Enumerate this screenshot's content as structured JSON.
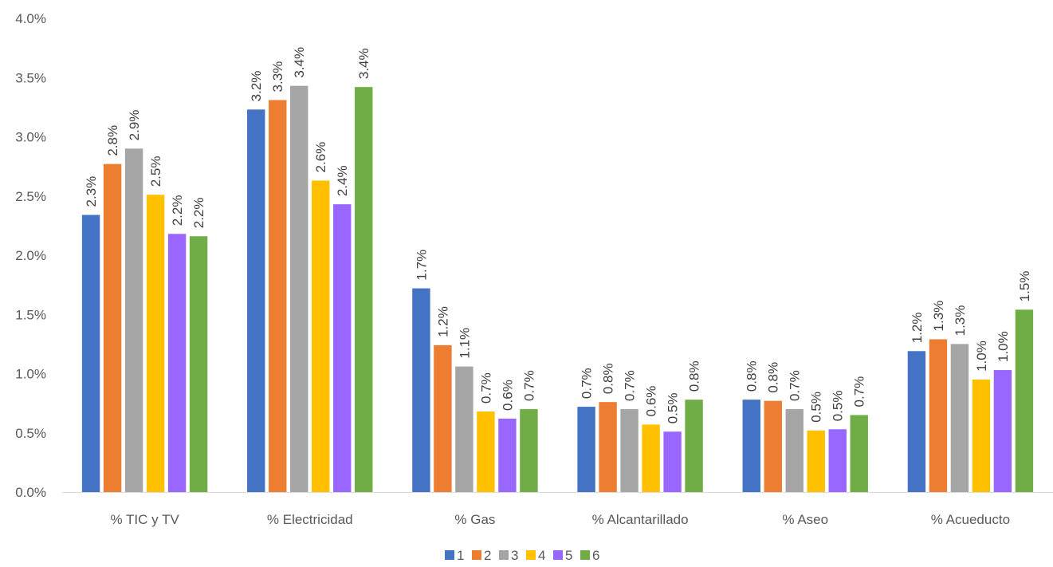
{
  "chart_data": {
    "type": "bar",
    "categories": [
      "% TIC y TV",
      "% Electricidad",
      "% Gas",
      "% Alcantarillado",
      "% Aseo",
      "% Acueducto"
    ],
    "series": [
      {
        "name": "1",
        "color": "#4472C4",
        "values": [
          2.34,
          3.23,
          1.72,
          0.72,
          0.78,
          1.19
        ],
        "labels": [
          "2.3%",
          "3.2%",
          "1.7%",
          "0.7%",
          "0.8%",
          "1.2%"
        ]
      },
      {
        "name": "2",
        "color": "#ED7D31",
        "values": [
          2.77,
          3.31,
          1.24,
          0.76,
          0.77,
          1.29
        ],
        "labels": [
          "2.8%",
          "3.3%",
          "1.2%",
          "0.8%",
          "0.8%",
          "1.3%"
        ]
      },
      {
        "name": "3",
        "color": "#A5A5A5",
        "values": [
          2.9,
          3.43,
          1.06,
          0.7,
          0.7,
          1.25
        ],
        "labels": [
          "2.9%",
          "3.4%",
          "1.1%",
          "0.7%",
          "0.7%",
          "1.3%"
        ]
      },
      {
        "name": "4",
        "color": "#FFC000",
        "values": [
          2.51,
          2.63,
          0.68,
          0.57,
          0.52,
          0.95
        ],
        "labels": [
          "2.5%",
          "2.6%",
          "0.7%",
          "0.6%",
          "0.5%",
          "1.0%"
        ]
      },
      {
        "name": "5",
        "color": "#9966FF",
        "values": [
          2.18,
          2.43,
          0.62,
          0.51,
          0.53,
          1.03
        ],
        "labels": [
          "2.2%",
          "2.4%",
          "0.6%",
          "0.5%",
          "0.5%",
          "1.0%"
        ]
      },
      {
        "name": "6",
        "color": "#70AD47",
        "values": [
          2.16,
          3.42,
          0.7,
          0.78,
          0.65,
          1.54
        ],
        "labels": [
          "2.2%",
          "3.4%",
          "0.7%",
          "0.8%",
          "0.7%",
          "1.5%"
        ]
      }
    ],
    "y_ticks": [
      "0.0%",
      "0.5%",
      "1.0%",
      "1.5%",
      "2.0%",
      "2.5%",
      "3.0%",
      "3.5%",
      "4.0%"
    ],
    "ylim": [
      0,
      4.0
    ],
    "title": "",
    "xlabel": "",
    "ylabel": "",
    "grid": false,
    "legend_position": "bottom",
    "axis_color": "#D9D9D9"
  }
}
